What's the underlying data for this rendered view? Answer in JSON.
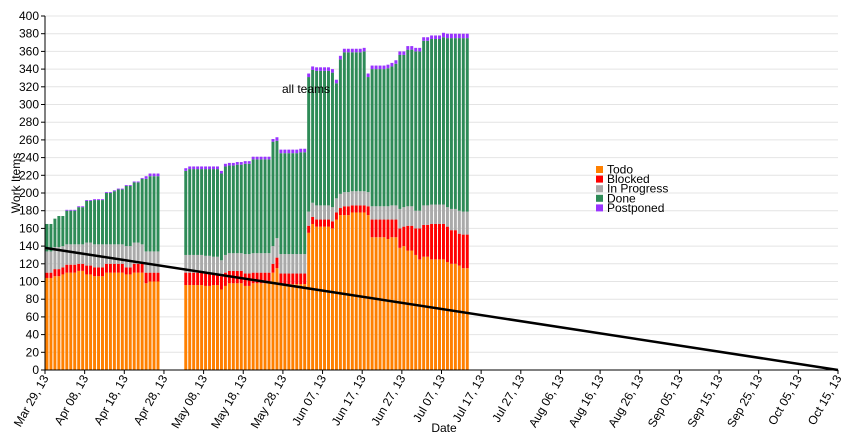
{
  "chart_data": {
    "type": "bar",
    "stacked": true,
    "title": "all teams",
    "xlabel": "Date",
    "ylabel": "Work Items",
    "ylim": [
      0,
      400
    ],
    "yticks": [
      0,
      20,
      40,
      60,
      80,
      100,
      120,
      140,
      160,
      180,
      200,
      220,
      240,
      260,
      280,
      300,
      320,
      340,
      360,
      380,
      400
    ],
    "grid": "horizontal",
    "legend_position": "right",
    "x_start_date": "2013-03-29",
    "x_end_date": "2013-10-15",
    "x_tick_labels": [
      "Mar 29, 13",
      "Apr 08, 13",
      "Apr 18, 13",
      "Apr 28, 13",
      "May 08, 13",
      "May 18, 13",
      "May 28, 13",
      "Jun 07, 13",
      "Jun 17, 13",
      "Jun 27, 13",
      "Jul 07, 13",
      "Jul 17, 13",
      "Jul 27, 13",
      "Aug 06, 13",
      "Aug 16, 13",
      "Aug 26, 13",
      "Sep 05, 13",
      "Sep 15, 13",
      "Sep 25, 13",
      "Oct 05, 13",
      "Oct 15, 13"
    ],
    "series": [
      {
        "name": "Todo",
        "color": "#ff8000"
      },
      {
        "name": "Blocked",
        "color": "#ff0000"
      },
      {
        "name": "In Progress",
        "color": "#aaaaaa"
      },
      {
        "name": "Done",
        "color": "#2e8b57"
      },
      {
        "name": "Postponed",
        "color": "#9933ff"
      }
    ],
    "data": [
      {
        "date": "2013-03-29",
        "Todo": 104,
        "Blocked": 6,
        "In Progress": 24,
        "Done": 31,
        "Postponed": 0
      },
      {
        "date": "2013-03-30",
        "Todo": 104,
        "Blocked": 6,
        "In Progress": 24,
        "Done": 31,
        "Postponed": 0
      },
      {
        "date": "2013-03-31",
        "Todo": 106,
        "Blocked": 8,
        "In Progress": 25,
        "Done": 32,
        "Postponed": 0
      },
      {
        "date": "2013-04-01",
        "Todo": 106,
        "Blocked": 8,
        "In Progress": 25,
        "Done": 35,
        "Postponed": 0
      },
      {
        "date": "2013-04-02",
        "Todo": 108,
        "Blocked": 8,
        "In Progress": 24,
        "Done": 34,
        "Postponed": 0
      },
      {
        "date": "2013-04-03",
        "Todo": 110,
        "Blocked": 9,
        "In Progress": 23,
        "Done": 38,
        "Postponed": 1
      },
      {
        "date": "2013-04-04",
        "Todo": 110,
        "Blocked": 9,
        "In Progress": 23,
        "Done": 38,
        "Postponed": 1
      },
      {
        "date": "2013-04-05",
        "Todo": 110,
        "Blocked": 9,
        "In Progress": 23,
        "Done": 38,
        "Postponed": 1
      },
      {
        "date": "2013-04-06",
        "Todo": 112,
        "Blocked": 8,
        "In Progress": 22,
        "Done": 42,
        "Postponed": 1
      },
      {
        "date": "2013-04-07",
        "Todo": 112,
        "Blocked": 8,
        "In Progress": 22,
        "Done": 42,
        "Postponed": 1
      },
      {
        "date": "2013-04-08",
        "Todo": 108,
        "Blocked": 10,
        "In Progress": 26,
        "Done": 47,
        "Postponed": 1
      },
      {
        "date": "2013-04-09",
        "Todo": 108,
        "Blocked": 10,
        "In Progress": 26,
        "Done": 47,
        "Postponed": 1
      },
      {
        "date": "2013-04-10",
        "Todo": 106,
        "Blocked": 10,
        "In Progress": 26,
        "Done": 50,
        "Postponed": 1
      },
      {
        "date": "2013-04-11",
        "Todo": 106,
        "Blocked": 10,
        "In Progress": 26,
        "Done": 50,
        "Postponed": 1
      },
      {
        "date": "2013-04-12",
        "Todo": 106,
        "Blocked": 10,
        "In Progress": 26,
        "Done": 50,
        "Postponed": 1
      },
      {
        "date": "2013-04-13",
        "Todo": 110,
        "Blocked": 10,
        "In Progress": 22,
        "Done": 58,
        "Postponed": 1
      },
      {
        "date": "2013-04-14",
        "Todo": 110,
        "Blocked": 10,
        "In Progress": 22,
        "Done": 58,
        "Postponed": 1
      },
      {
        "date": "2013-04-15",
        "Todo": 110,
        "Blocked": 10,
        "In Progress": 22,
        "Done": 60,
        "Postponed": 1
      },
      {
        "date": "2013-04-16",
        "Todo": 110,
        "Blocked": 10,
        "In Progress": 22,
        "Done": 62,
        "Postponed": 1
      },
      {
        "date": "2013-04-17",
        "Todo": 110,
        "Blocked": 10,
        "In Progress": 22,
        "Done": 62,
        "Postponed": 1
      },
      {
        "date": "2013-04-18",
        "Todo": 108,
        "Blocked": 8,
        "In Progress": 24,
        "Done": 68,
        "Postponed": 1
      },
      {
        "date": "2013-04-19",
        "Todo": 108,
        "Blocked": 8,
        "In Progress": 24,
        "Done": 68,
        "Postponed": 1
      },
      {
        "date": "2013-04-20",
        "Todo": 110,
        "Blocked": 10,
        "In Progress": 24,
        "Done": 68,
        "Postponed": 1
      },
      {
        "date": "2013-04-21",
        "Todo": 110,
        "Blocked": 10,
        "In Progress": 24,
        "Done": 68,
        "Postponed": 1
      },
      {
        "date": "2013-04-22",
        "Todo": 110,
        "Blocked": 10,
        "In Progress": 22,
        "Done": 74,
        "Postponed": 1
      },
      {
        "date": "2013-04-23",
        "Todo": 98,
        "Blocked": 12,
        "In Progress": 24,
        "Done": 82,
        "Postponed": 3
      },
      {
        "date": "2013-04-24",
        "Todo": 100,
        "Blocked": 10,
        "In Progress": 24,
        "Done": 85,
        "Postponed": 3
      },
      {
        "date": "2013-04-25",
        "Todo": 100,
        "Blocked": 10,
        "In Progress": 24,
        "Done": 85,
        "Postponed": 3
      },
      {
        "date": "2013-04-26",
        "Todo": 100,
        "Blocked": 10,
        "In Progress": 24,
        "Done": 85,
        "Postponed": 3
      },
      {
        "date": "2013-05-03",
        "Todo": 96,
        "Blocked": 14,
        "In Progress": 20,
        "Done": 95,
        "Postponed": 3
      },
      {
        "date": "2013-05-04",
        "Todo": 96,
        "Blocked": 14,
        "In Progress": 20,
        "Done": 97,
        "Postponed": 3
      },
      {
        "date": "2013-05-05",
        "Todo": 96,
        "Blocked": 14,
        "In Progress": 20,
        "Done": 97,
        "Postponed": 3
      },
      {
        "date": "2013-05-06",
        "Todo": 96,
        "Blocked": 14,
        "In Progress": 20,
        "Done": 97,
        "Postponed": 3
      },
      {
        "date": "2013-05-07",
        "Todo": 96,
        "Blocked": 14,
        "In Progress": 20,
        "Done": 97,
        "Postponed": 3
      },
      {
        "date": "2013-05-08",
        "Todo": 95,
        "Blocked": 14,
        "In Progress": 20,
        "Done": 98,
        "Postponed": 3
      },
      {
        "date": "2013-05-09",
        "Todo": 95,
        "Blocked": 14,
        "In Progress": 20,
        "Done": 98,
        "Postponed": 3
      },
      {
        "date": "2013-05-10",
        "Todo": 96,
        "Blocked": 12,
        "In Progress": 20,
        "Done": 99,
        "Postponed": 3
      },
      {
        "date": "2013-05-11",
        "Todo": 96,
        "Blocked": 12,
        "In Progress": 20,
        "Done": 99,
        "Postponed": 3
      },
      {
        "date": "2013-05-12",
        "Todo": 91,
        "Blocked": 15,
        "In Progress": 18,
        "Done": 98,
        "Postponed": 3
      },
      {
        "date": "2013-05-13",
        "Todo": 95,
        "Blocked": 15,
        "In Progress": 20,
        "Done": 100,
        "Postponed": 3
      },
      {
        "date": "2013-05-14",
        "Todo": 98,
        "Blocked": 14,
        "In Progress": 20,
        "Done": 99,
        "Postponed": 3
      },
      {
        "date": "2013-05-15",
        "Todo": 98,
        "Blocked": 14,
        "In Progress": 20,
        "Done": 99,
        "Postponed": 3
      },
      {
        "date": "2013-05-16",
        "Todo": 98,
        "Blocked": 14,
        "In Progress": 20,
        "Done": 100,
        "Postponed": 3
      },
      {
        "date": "2013-05-17",
        "Todo": 98,
        "Blocked": 14,
        "In Progress": 20,
        "Done": 100,
        "Postponed": 3
      },
      {
        "date": "2013-05-18",
        "Todo": 95,
        "Blocked": 14,
        "In Progress": 22,
        "Done": 102,
        "Postponed": 3
      },
      {
        "date": "2013-05-19",
        "Todo": 95,
        "Blocked": 14,
        "In Progress": 22,
        "Done": 102,
        "Postponed": 3
      },
      {
        "date": "2013-05-20",
        "Todo": 98,
        "Blocked": 12,
        "In Progress": 22,
        "Done": 106,
        "Postponed": 3
      },
      {
        "date": "2013-05-21",
        "Todo": 98,
        "Blocked": 12,
        "In Progress": 22,
        "Done": 106,
        "Postponed": 3
      },
      {
        "date": "2013-05-22",
        "Todo": 98,
        "Blocked": 12,
        "In Progress": 22,
        "Done": 106,
        "Postponed": 3
      },
      {
        "date": "2013-05-23",
        "Todo": 98,
        "Blocked": 12,
        "In Progress": 22,
        "Done": 106,
        "Postponed": 3
      },
      {
        "date": "2013-05-24",
        "Todo": 98,
        "Blocked": 12,
        "In Progress": 22,
        "Done": 106,
        "Postponed": 3
      },
      {
        "date": "2013-05-25",
        "Todo": 110,
        "Blocked": 10,
        "In Progress": 20,
        "Done": 118,
        "Postponed": 3
      },
      {
        "date": "2013-05-26",
        "Todo": 115,
        "Blocked": 12,
        "In Progress": 22,
        "Done": 110,
        "Postponed": 4
      },
      {
        "date": "2013-05-27",
        "Todo": 97,
        "Blocked": 12,
        "In Progress": 22,
        "Done": 114,
        "Postponed": 4
      },
      {
        "date": "2013-05-28",
        "Todo": 97,
        "Blocked": 12,
        "In Progress": 22,
        "Done": 114,
        "Postponed": 4
      },
      {
        "date": "2013-05-29",
        "Todo": 97,
        "Blocked": 12,
        "In Progress": 22,
        "Done": 114,
        "Postponed": 4
      },
      {
        "date": "2013-05-30",
        "Todo": 97,
        "Blocked": 12,
        "In Progress": 22,
        "Done": 114,
        "Postponed": 4
      },
      {
        "date": "2013-05-31",
        "Todo": 97,
        "Blocked": 12,
        "In Progress": 22,
        "Done": 114,
        "Postponed": 4
      },
      {
        "date": "2013-06-01",
        "Todo": 97,
        "Blocked": 12,
        "In Progress": 22,
        "Done": 115,
        "Postponed": 4
      },
      {
        "date": "2013-06-02",
        "Todo": 97,
        "Blocked": 12,
        "In Progress": 22,
        "Done": 115,
        "Postponed": 4
      },
      {
        "date": "2013-06-03",
        "Todo": 155,
        "Blocked": 8,
        "In Progress": 16,
        "Done": 152,
        "Postponed": 4
      },
      {
        "date": "2013-06-04",
        "Todo": 165,
        "Blocked": 8,
        "In Progress": 16,
        "Done": 150,
        "Postponed": 4
      },
      {
        "date": "2013-06-05",
        "Todo": 162,
        "Blocked": 8,
        "In Progress": 16,
        "Done": 152,
        "Postponed": 4
      },
      {
        "date": "2013-06-06",
        "Todo": 162,
        "Blocked": 8,
        "In Progress": 16,
        "Done": 152,
        "Postponed": 4
      },
      {
        "date": "2013-06-07",
        "Todo": 162,
        "Blocked": 8,
        "In Progress": 16,
        "Done": 152,
        "Postponed": 4
      },
      {
        "date": "2013-06-08",
        "Todo": 162,
        "Blocked": 8,
        "In Progress": 16,
        "Done": 152,
        "Postponed": 4
      },
      {
        "date": "2013-06-09",
        "Todo": 160,
        "Blocked": 8,
        "In Progress": 16,
        "Done": 152,
        "Postponed": 4
      },
      {
        "date": "2013-06-10",
        "Todo": 170,
        "Blocked": 8,
        "In Progress": 16,
        "Done": 130,
        "Postponed": 4
      },
      {
        "date": "2013-06-11",
        "Todo": 175,
        "Blocked": 8,
        "In Progress": 16,
        "Done": 152,
        "Postponed": 4
      },
      {
        "date": "2013-06-12",
        "Todo": 175,
        "Blocked": 10,
        "In Progress": 16,
        "Done": 158,
        "Postponed": 4
      },
      {
        "date": "2013-06-13",
        "Todo": 175,
        "Blocked": 10,
        "In Progress": 16,
        "Done": 158,
        "Postponed": 4
      },
      {
        "date": "2013-06-14",
        "Todo": 178,
        "Blocked": 8,
        "In Progress": 16,
        "Done": 157,
        "Postponed": 4
      },
      {
        "date": "2013-06-15",
        "Todo": 178,
        "Blocked": 8,
        "In Progress": 16,
        "Done": 157,
        "Postponed": 4
      },
      {
        "date": "2013-06-16",
        "Todo": 178,
        "Blocked": 8,
        "In Progress": 16,
        "Done": 157,
        "Postponed": 4
      },
      {
        "date": "2013-06-17",
        "Todo": 178,
        "Blocked": 8,
        "In Progress": 16,
        "Done": 158,
        "Postponed": 4
      },
      {
        "date": "2013-06-18",
        "Todo": 175,
        "Blocked": 10,
        "In Progress": 16,
        "Done": 130,
        "Postponed": 4
      },
      {
        "date": "2013-06-19",
        "Todo": 150,
        "Blocked": 20,
        "In Progress": 15,
        "Done": 155,
        "Postponed": 4
      },
      {
        "date": "2013-06-20",
        "Todo": 150,
        "Blocked": 20,
        "In Progress": 15,
        "Done": 155,
        "Postponed": 4
      },
      {
        "date": "2013-06-21",
        "Todo": 150,
        "Blocked": 20,
        "In Progress": 15,
        "Done": 155,
        "Postponed": 4
      },
      {
        "date": "2013-06-22",
        "Todo": 150,
        "Blocked": 20,
        "In Progress": 15,
        "Done": 155,
        "Postponed": 4
      },
      {
        "date": "2013-06-23",
        "Todo": 148,
        "Blocked": 22,
        "In Progress": 15,
        "Done": 156,
        "Postponed": 4
      },
      {
        "date": "2013-06-24",
        "Todo": 150,
        "Blocked": 20,
        "In Progress": 16,
        "Done": 157,
        "Postponed": 4
      },
      {
        "date": "2013-06-25",
        "Todo": 150,
        "Blocked": 20,
        "In Progress": 16,
        "Done": 160,
        "Postponed": 4
      },
      {
        "date": "2013-06-26",
        "Todo": 138,
        "Blocked": 22,
        "In Progress": 22,
        "Done": 174,
        "Postponed": 4
      },
      {
        "date": "2013-06-27",
        "Todo": 140,
        "Blocked": 22,
        "In Progress": 22,
        "Done": 172,
        "Postponed": 4
      },
      {
        "date": "2013-06-28",
        "Todo": 135,
        "Blocked": 28,
        "In Progress": 22,
        "Done": 177,
        "Postponed": 4
      },
      {
        "date": "2013-06-29",
        "Todo": 135,
        "Blocked": 28,
        "In Progress": 22,
        "Done": 177,
        "Postponed": 4
      },
      {
        "date": "2013-06-30",
        "Todo": 130,
        "Blocked": 30,
        "In Progress": 20,
        "Done": 180,
        "Postponed": 4
      },
      {
        "date": "2013-07-01",
        "Todo": 125,
        "Blocked": 35,
        "In Progress": 20,
        "Done": 180,
        "Postponed": 4
      },
      {
        "date": "2013-07-02",
        "Todo": 128,
        "Blocked": 36,
        "In Progress": 22,
        "Done": 186,
        "Postponed": 4
      },
      {
        "date": "2013-07-03",
        "Todo": 128,
        "Blocked": 36,
        "In Progress": 22,
        "Done": 186,
        "Postponed": 4
      },
      {
        "date": "2013-07-04",
        "Todo": 125,
        "Blocked": 40,
        "In Progress": 22,
        "Done": 187,
        "Postponed": 4
      },
      {
        "date": "2013-07-05",
        "Todo": 125,
        "Blocked": 40,
        "In Progress": 22,
        "Done": 187,
        "Postponed": 4
      },
      {
        "date": "2013-07-06",
        "Todo": 125,
        "Blocked": 40,
        "In Progress": 22,
        "Done": 187,
        "Postponed": 4
      },
      {
        "date": "2013-07-07",
        "Todo": 125,
        "Blocked": 40,
        "In Progress": 22,
        "Done": 189,
        "Postponed": 5
      },
      {
        "date": "2013-07-08",
        "Todo": 122,
        "Blocked": 40,
        "In Progress": 22,
        "Done": 191,
        "Postponed": 5
      },
      {
        "date": "2013-07-09",
        "Todo": 120,
        "Blocked": 38,
        "In Progress": 24,
        "Done": 193,
        "Postponed": 5
      },
      {
        "date": "2013-07-10",
        "Todo": 120,
        "Blocked": 38,
        "In Progress": 24,
        "Done": 193,
        "Postponed": 5
      },
      {
        "date": "2013-07-11",
        "Todo": 118,
        "Blocked": 36,
        "In Progress": 26,
        "Done": 195,
        "Postponed": 5
      },
      {
        "date": "2013-07-12",
        "Todo": 115,
        "Blocked": 38,
        "In Progress": 26,
        "Done": 196,
        "Postponed": 5
      },
      {
        "date": "2013-07-13",
        "Todo": 115,
        "Blocked": 38,
        "In Progress": 26,
        "Done": 196,
        "Postponed": 5
      }
    ],
    "trend_line": {
      "start": {
        "date": "2013-03-29",
        "value": 138
      },
      "end": {
        "date": "2013-10-15",
        "value": 0
      }
    }
  }
}
